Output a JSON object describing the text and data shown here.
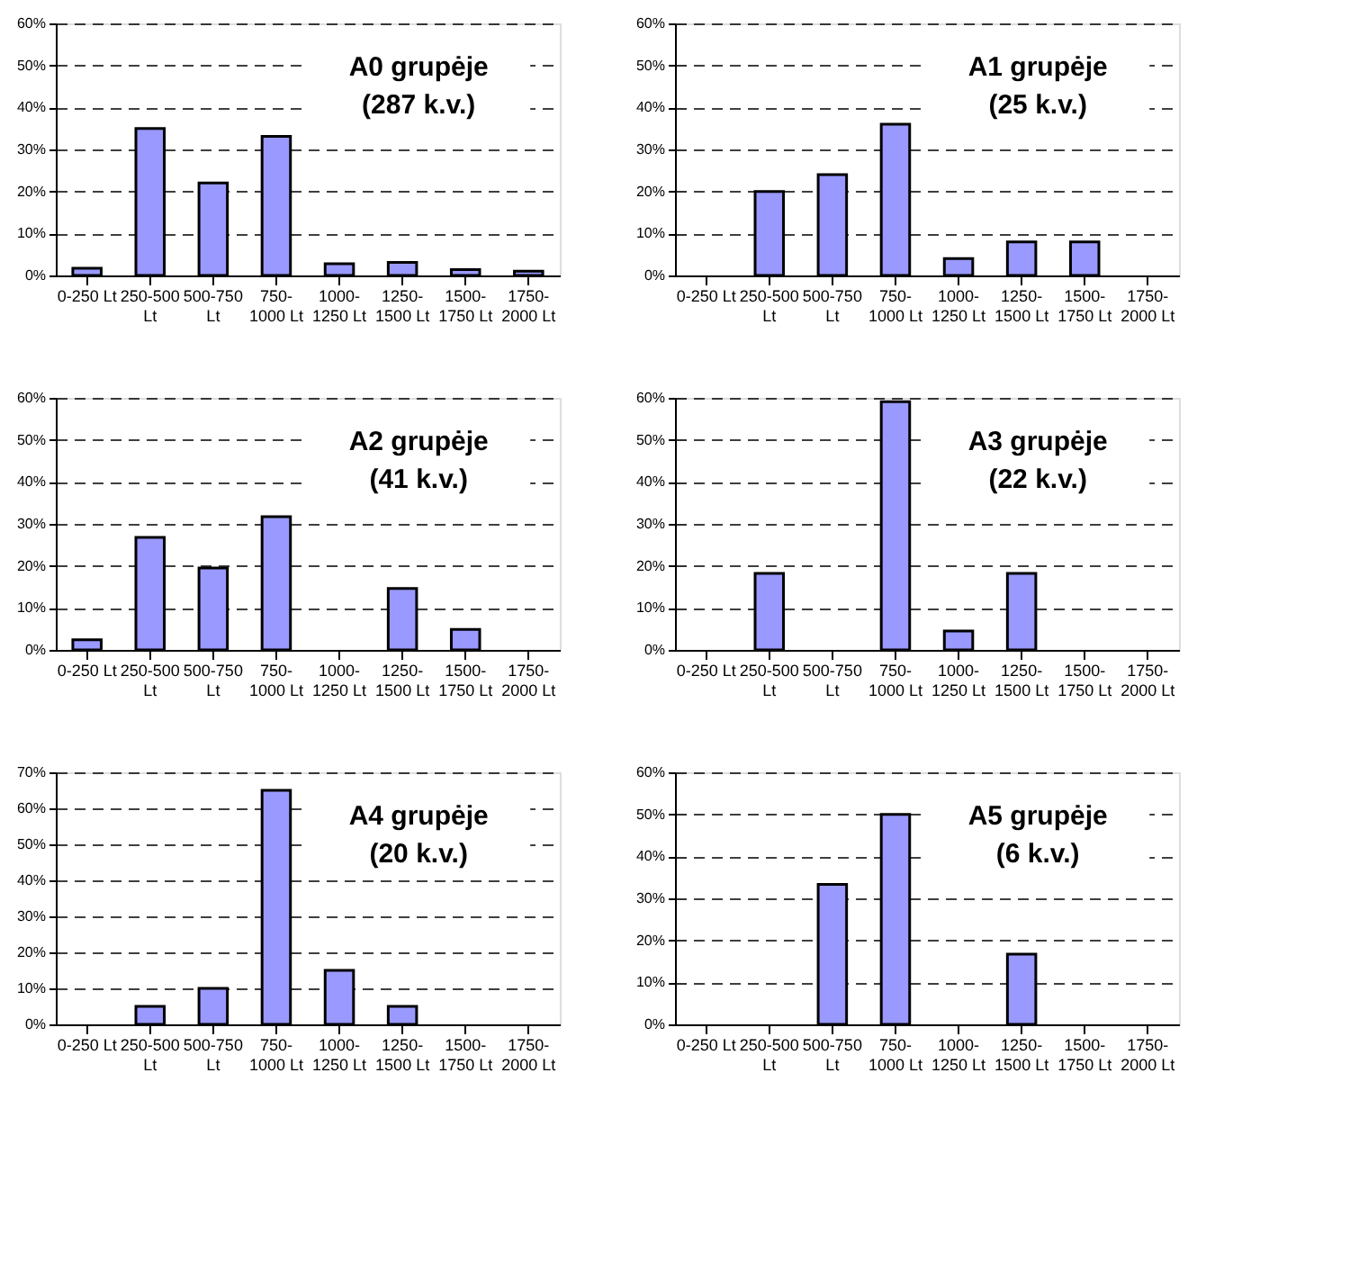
{
  "chart_data": [
    {
      "type": "bar",
      "title": "A0 grupėje",
      "subtitle": "(287 k.v.)",
      "categories": [
        "0-250 Lt",
        "250-500 Lt",
        "500-750 Lt",
        "750-1000 Lt",
        "1000-1250 Lt",
        "1250-1500 Lt",
        "1500-1750 Lt",
        "1750-2000 Lt"
      ],
      "values": [
        1.7,
        35,
        22,
        33.1,
        2.8,
        3.1,
        1.4,
        1.0
      ],
      "color": "#9999ff",
      "ylim": [
        0,
        60
      ],
      "yticks": [
        {
          "value": 0,
          "label": "0%"
        },
        {
          "value": 10,
          "label": "10%"
        },
        {
          "value": 20,
          "label": "20%"
        },
        {
          "value": 30,
          "label": "30%"
        },
        {
          "value": 40,
          "label": "40%"
        },
        {
          "value": 50,
          "label": "50%"
        },
        {
          "value": 60,
          "label": "60%"
        }
      ],
      "grid": "y",
      "line_style": "dashed"
    },
    {
      "type": "bar",
      "title": "A1 grupėje",
      "subtitle": "(25 k.v.)",
      "categories": [
        "0-250 Lt",
        "250-500 Lt",
        "500-750 Lt",
        "750-1000 Lt",
        "1000-1250 Lt",
        "1250-1500 Lt",
        "1500-1750 Lt",
        "1750-2000 Lt"
      ],
      "values": [
        null,
        20,
        24,
        36,
        4,
        8,
        8,
        null
      ],
      "color": "#9999ff",
      "ylim": [
        0,
        60
      ],
      "yticks": [
        {
          "value": 0,
          "label": "0%"
        },
        {
          "value": 10,
          "label": "10%"
        },
        {
          "value": 20,
          "label": "20%"
        },
        {
          "value": 30,
          "label": "30%"
        },
        {
          "value": 40,
          "label": "40%"
        },
        {
          "value": 50,
          "label": "50%"
        },
        {
          "value": 60,
          "label": "60%"
        }
      ],
      "grid": "y",
      "line_style": "dashed"
    },
    {
      "type": "bar",
      "title": "A2 grupėje",
      "subtitle": "(41 k.v.)",
      "categories": [
        "0-250 Lt",
        "250-500 Lt",
        "500-750 Lt",
        "750-1000 Lt",
        "1000-1250 Lt",
        "1250-1500 Lt",
        "1500-1750 Lt",
        "1750-2000 Lt"
      ],
      "values": [
        2.4,
        26.8,
        19.5,
        31.7,
        null,
        14.6,
        4.9,
        null
      ],
      "color": "#9999ff",
      "ylim": [
        0,
        60
      ],
      "yticks": [
        {
          "value": 0,
          "label": "0%"
        },
        {
          "value": 10,
          "label": "10%"
        },
        {
          "value": 20,
          "label": "20%"
        },
        {
          "value": 30,
          "label": "30%"
        },
        {
          "value": 40,
          "label": "40%"
        },
        {
          "value": 50,
          "label": "50%"
        },
        {
          "value": 60,
          "label": "60%"
        }
      ],
      "grid": "y",
      "line_style": "dashed"
    },
    {
      "type": "bar",
      "title": "A3 grupėje",
      "subtitle": "(22 k.v.)",
      "categories": [
        "0-250 Lt",
        "250-500 Lt",
        "500-750 Lt",
        "750-1000 Lt",
        "1000-1250 Lt",
        "1250-1500 Lt",
        "1500-1750 Lt",
        "1750-2000 Lt"
      ],
      "values": [
        null,
        18.2,
        null,
        59.1,
        4.5,
        18.2,
        null,
        null
      ],
      "color": "#9999ff",
      "ylim": [
        0,
        60
      ],
      "yticks": [
        {
          "value": 0,
          "label": "0%"
        },
        {
          "value": 10,
          "label": "10%"
        },
        {
          "value": 20,
          "label": "20%"
        },
        {
          "value": 30,
          "label": "30%"
        },
        {
          "value": 40,
          "label": "40%"
        },
        {
          "value": 50,
          "label": "50%"
        },
        {
          "value": 60,
          "label": "60%"
        }
      ],
      "grid": "y",
      "line_style": "dashed"
    },
    {
      "type": "bar",
      "title": "A4 grupėje",
      "subtitle": "(20 k.v.)",
      "categories": [
        "0-250 Lt",
        "250-500 Lt",
        "500-750 Lt",
        "750-1000 Lt",
        "1000-1250 Lt",
        "1250-1500 Lt",
        "1500-1750 Lt",
        "1750-2000 Lt"
      ],
      "values": [
        null,
        5,
        10,
        65,
        15,
        5,
        null,
        null
      ],
      "color": "#9999ff",
      "ylim": [
        0,
        70
      ],
      "yticks": [
        {
          "value": 0,
          "label": "0%"
        },
        {
          "value": 10,
          "label": "10%"
        },
        {
          "value": 20,
          "label": "20%"
        },
        {
          "value": 30,
          "label": "30%"
        },
        {
          "value": 40,
          "label": "40%"
        },
        {
          "value": 50,
          "label": "50%"
        },
        {
          "value": 60,
          "label": "60%"
        },
        {
          "value": 70,
          "label": "70%"
        }
      ],
      "grid": "y",
      "line_style": "dashed"
    },
    {
      "type": "bar",
      "title": "A5 grupėje",
      "subtitle": "(6  k.v.)",
      "categories": [
        "0-250 Lt",
        "250-500 Lt",
        "500-750 Lt",
        "750-1000 Lt",
        "1000-1250 Lt",
        "1250-1500 Lt",
        "1500-1750 Lt",
        "1750-2000 Lt"
      ],
      "values": [
        null,
        null,
        33.3,
        50,
        null,
        16.7,
        null,
        null
      ],
      "color": "#9999ff",
      "ylim": [
        0,
        60
      ],
      "yticks": [
        {
          "value": 0,
          "label": "0%"
        },
        {
          "value": 10,
          "label": "10%"
        },
        {
          "value": 20,
          "label": "20%"
        },
        {
          "value": 30,
          "label": "30%"
        },
        {
          "value": 40,
          "label": "40%"
        },
        {
          "value": 50,
          "label": "50%"
        },
        {
          "value": 60,
          "label": "60%"
        }
      ],
      "grid": "y",
      "line_style": "dashed"
    }
  ]
}
